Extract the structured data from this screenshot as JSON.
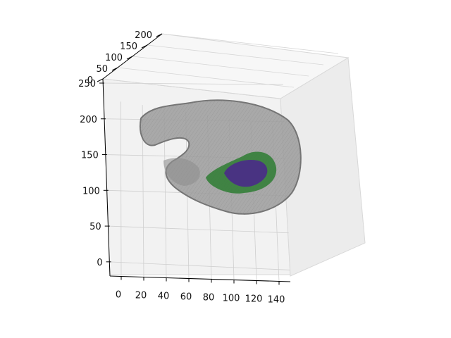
{
  "chart_data": {
    "type": "3d-surface",
    "title": "",
    "xlabel": "",
    "ylabel": "",
    "zlabel": "",
    "xlim": [
      -10,
      150
    ],
    "ylim": [
      0,
      200
    ],
    "zlim": [
      -10,
      250
    ],
    "x_ticks": [
      "0",
      "20",
      "40",
      "60",
      "80",
      "100",
      "120",
      "140"
    ],
    "y_ticks": [
      "0",
      "50",
      "100",
      "150",
      "200"
    ],
    "z_ticks": [
      "0",
      "50",
      "100",
      "150",
      "200",
      "250"
    ],
    "grid": true,
    "pane_color": "#f2f2f2",
    "surfaces": [
      {
        "color": "#808080"
      },
      {
        "color": "#2e7d32"
      },
      {
        "color": "#4a2a8a"
      }
    ]
  }
}
